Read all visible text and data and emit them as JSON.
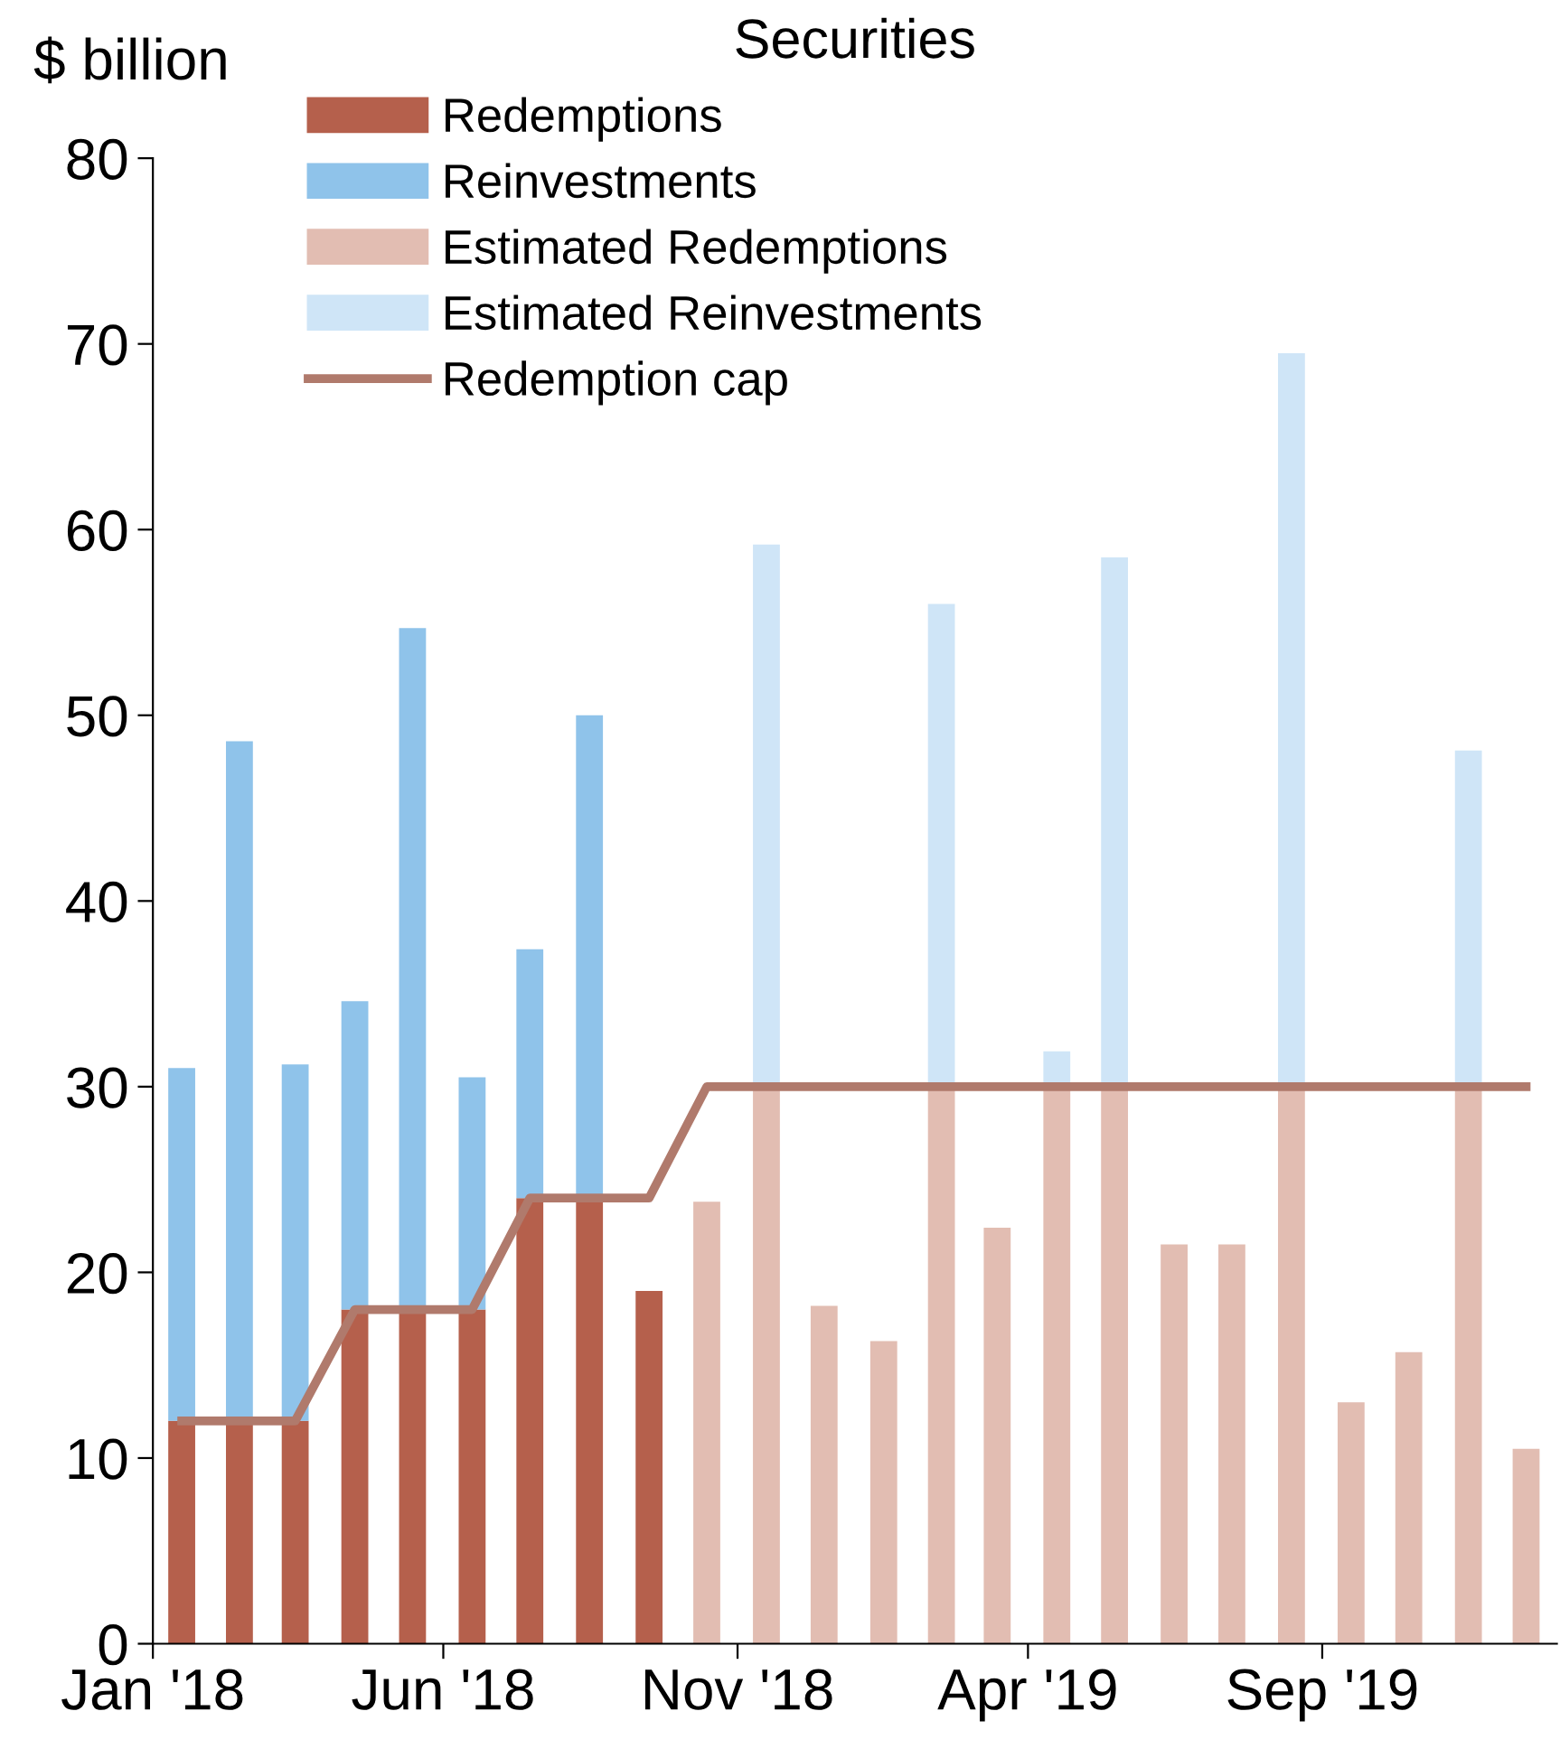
{
  "chart_data": {
    "type": "bar",
    "title": "Securities",
    "ylabel": "$ billion",
    "stacked": true,
    "x": [
      "2018-01-16",
      "2018-02-15",
      "2018-03-16",
      "2018-04-16",
      "2018-05-16",
      "2018-06-16",
      "2018-07-16",
      "2018-08-16",
      "2018-09-16",
      "2018-10-16",
      "2018-11-16",
      "2018-12-16",
      "2019-01-16",
      "2019-02-15",
      "2019-03-16",
      "2019-04-16",
      "2019-05-16",
      "2019-06-16",
      "2019-07-16",
      "2019-08-16",
      "2019-09-16",
      "2019-10-16",
      "2019-11-16",
      "2019-12-16"
    ],
    "series": [
      {
        "name": "Redemptions",
        "color": "#b5604c",
        "values": [
          12,
          12,
          12,
          18,
          18,
          18,
          24,
          24,
          19,
          null,
          null,
          null,
          null,
          null,
          null,
          null,
          null,
          null,
          null,
          null,
          null,
          null,
          null,
          null
        ]
      },
      {
        "name": "Reinvestments",
        "color": "#8fc3ea",
        "values": [
          19,
          36.6,
          19.2,
          16.6,
          36.7,
          12.5,
          13.4,
          26,
          null,
          null,
          null,
          null,
          null,
          null,
          null,
          null,
          null,
          null,
          null,
          null,
          null,
          null,
          null,
          null
        ]
      },
      {
        "name": "Estimated Redemptions",
        "color": "#e2bdb2",
        "values": [
          null,
          null,
          null,
          null,
          null,
          null,
          null,
          null,
          null,
          23.8,
          30,
          18.2,
          16.3,
          30,
          22.4,
          30,
          30,
          21.5,
          21.5,
          30,
          13,
          15.7,
          30,
          10.5
        ]
      },
      {
        "name": "Estimated Reinvestments",
        "color": "#cfe5f7",
        "values": [
          null,
          null,
          null,
          null,
          null,
          null,
          null,
          null,
          null,
          null,
          29.2,
          null,
          null,
          26,
          null,
          1.9,
          28.5,
          null,
          null,
          39.5,
          null,
          null,
          18.1,
          null
        ]
      },
      {
        "name": "Redemption cap",
        "type": "line",
        "color": "#b07a6c",
        "values": [
          12,
          12,
          12,
          18,
          18,
          18,
          24,
          24,
          24,
          30,
          30,
          30,
          30,
          30,
          30,
          30,
          30,
          30,
          30,
          30,
          30,
          30,
          30,
          30
        ]
      }
    ],
    "xlim": [
      "2018-01",
      "2020-01"
    ],
    "xticks": [
      {
        "value": "2018-01",
        "label": "Jan '18"
      },
      {
        "value": "2018-06",
        "label": "Jun '18"
      },
      {
        "value": "2018-11",
        "label": "Nov '18"
      },
      {
        "value": "2019-04",
        "label": "Apr '19"
      },
      {
        "value": "2019-09",
        "label": "Sep '19"
      }
    ],
    "ylim": [
      0,
      80
    ],
    "yticks": [
      0,
      10,
      20,
      30,
      40,
      50,
      60,
      70,
      80
    ],
    "grid": false,
    "legend": "top left"
  }
}
